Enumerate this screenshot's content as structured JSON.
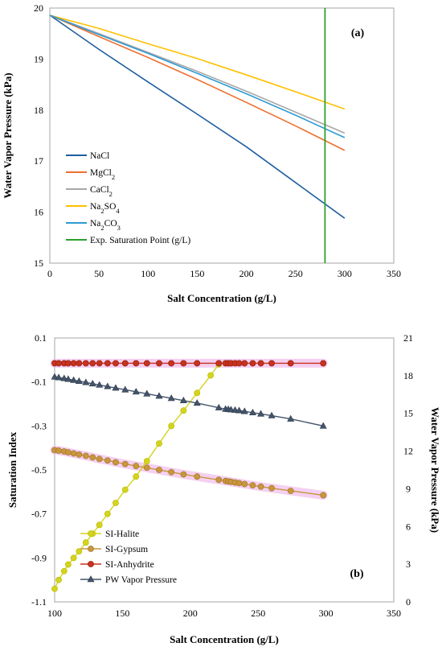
{
  "chart_data": [
    {
      "type": "line",
      "tag": "(a)",
      "xlabel": "Salt Concentration (g/L)",
      "ylabel": "Water Vapor Pressure (kPa)",
      "xlim": [
        0,
        350
      ],
      "ylim": [
        15,
        20
      ],
      "xticks": [
        "0",
        "50",
        "100",
        "150",
        "200",
        "250",
        "300",
        "350"
      ],
      "yticks": [
        "15",
        "16",
        "17",
        "18",
        "19",
        "20"
      ],
      "x": [
        0,
        50,
        100,
        150,
        200,
        250,
        300
      ],
      "series": [
        {
          "name": "NaCl",
          "sub": "",
          "color": "#1f5fa0",
          "values": [
            19.86,
            19.19,
            18.55,
            17.92,
            17.28,
            16.58,
            15.88
          ]
        },
        {
          "name": "MgCl",
          "sub": "2",
          "color": "#f07030",
          "values": [
            19.86,
            19.44,
            19.03,
            18.6,
            18.15,
            17.69,
            17.21
          ]
        },
        {
          "name": "CaCl",
          "sub": "2",
          "color": "#a8a8a8",
          "values": [
            19.86,
            19.5,
            19.13,
            18.76,
            18.37,
            17.96,
            17.55
          ]
        },
        {
          "name": "Na",
          "sub": "2",
          "post": "SO",
          "sub2": "4",
          "color": "#ffc000",
          "values": [
            19.86,
            19.6,
            19.3,
            19.01,
            18.69,
            18.36,
            18.02
          ]
        },
        {
          "name": "Na",
          "sub": "2",
          "post": "CO",
          "sub2": "3",
          "color": "#2e9bd4",
          "values": [
            19.86,
            19.48,
            19.11,
            18.72,
            18.32,
            17.9,
            17.46
          ]
        }
      ],
      "vline": {
        "name": "Exp. Saturation Point (g/L)",
        "x": 280,
        "color": "#2ca02c"
      },
      "legend": "lower-left"
    },
    {
      "type": "line",
      "tag": "(b)",
      "xlabel": "Salt Concentration (g/L)",
      "ylabel": "Saturation Index",
      "ylabel_right": "Water Vapor Pressure (kPa)",
      "xlim": [
        100,
        350
      ],
      "ylim": [
        -1.1,
        0.1
      ],
      "ylim_right": [
        0,
        21
      ],
      "xticks": [
        "100",
        "150",
        "200",
        "250",
        "300",
        "350"
      ],
      "yticks": [
        "-1.1",
        "-0.9",
        "-0.7",
        "-0.5",
        "-0.3",
        "-0.1",
        "0.1"
      ],
      "yticks_right": [
        "0",
        "3",
        "6",
        "9",
        "12",
        "15",
        "18",
        "21"
      ],
      "series": [
        {
          "name": "SI-Halite",
          "axis": "left",
          "color": "#d4d41e",
          "edge": "#b8b800",
          "marker": "circle",
          "x": [
            100,
            103,
            107,
            110,
            114,
            118,
            123,
            128,
            133,
            139,
            145,
            152,
            160,
            168,
            177,
            186,
            195,
            205,
            215,
            221
          ],
          "y": [
            -1.04,
            -1.0,
            -0.96,
            -0.93,
            -0.9,
            -0.87,
            -0.83,
            -0.79,
            -0.75,
            -0.7,
            -0.65,
            -0.59,
            -0.53,
            -0.46,
            -0.38,
            -0.3,
            -0.23,
            -0.15,
            -0.07,
            -0.02
          ]
        },
        {
          "name": "SI-Gypsum",
          "axis": "left",
          "color": "#c8963c",
          "edge": "#a0702a",
          "marker": "circle",
          "halo": true,
          "x": [
            100,
            103,
            107,
            110,
            114,
            118,
            123,
            128,
            133,
            139,
            145,
            152,
            160,
            168,
            177,
            186,
            195,
            205,
            221,
            226,
            228,
            230,
            233,
            236,
            240,
            246,
            252,
            260,
            274,
            298
          ],
          "y": [
            -0.41,
            -0.412,
            -0.416,
            -0.42,
            -0.425,
            -0.43,
            -0.436,
            -0.443,
            -0.45,
            -0.457,
            -0.465,
            -0.473,
            -0.482,
            -0.49,
            -0.5,
            -0.51,
            -0.52,
            -0.53,
            -0.545,
            -0.55,
            -0.552,
            -0.554,
            -0.557,
            -0.56,
            -0.564,
            -0.57,
            -0.576,
            -0.583,
            -0.595,
            -0.615
          ]
        },
        {
          "name": "SI-Anhydrite",
          "axis": "left",
          "color": "#c8321e",
          "edge": "#8c1e10",
          "marker": "circle",
          "halo": true,
          "x": [
            100,
            103,
            107,
            110,
            114,
            118,
            123,
            128,
            133,
            139,
            145,
            152,
            160,
            168,
            177,
            186,
            195,
            205,
            221,
            226,
            228,
            230,
            233,
            236,
            240,
            246,
            252,
            260,
            274,
            298
          ],
          "y": [
            -0.015,
            -0.015,
            -0.015,
            -0.015,
            -0.015,
            -0.015,
            -0.015,
            -0.015,
            -0.015,
            -0.015,
            -0.015,
            -0.015,
            -0.015,
            -0.015,
            -0.015,
            -0.015,
            -0.015,
            -0.015,
            -0.015,
            -0.015,
            -0.015,
            -0.015,
            -0.015,
            -0.015,
            -0.015,
            -0.015,
            -0.015,
            -0.015,
            -0.015,
            -0.015
          ]
        },
        {
          "name": "PW Vapor Pressure",
          "axis": "right",
          "color": "#44546a",
          "edge": "#2f3b4c",
          "marker": "triangle",
          "x": [
            100,
            103,
            107,
            110,
            114,
            118,
            123,
            128,
            133,
            139,
            145,
            152,
            160,
            168,
            177,
            186,
            195,
            205,
            221,
            226,
            228,
            230,
            233,
            236,
            240,
            246,
            252,
            260,
            274,
            298
          ],
          "y": [
            17.9,
            17.85,
            17.78,
            17.72,
            17.64,
            17.56,
            17.46,
            17.36,
            17.26,
            17.14,
            17.02,
            16.88,
            16.72,
            16.56,
            16.38,
            16.2,
            16.02,
            15.82,
            15.45,
            15.34,
            15.32,
            15.29,
            15.26,
            15.22,
            15.16,
            15.06,
            14.96,
            14.82,
            14.56,
            14.0
          ]
        }
      ],
      "legend": "lower-left"
    }
  ]
}
